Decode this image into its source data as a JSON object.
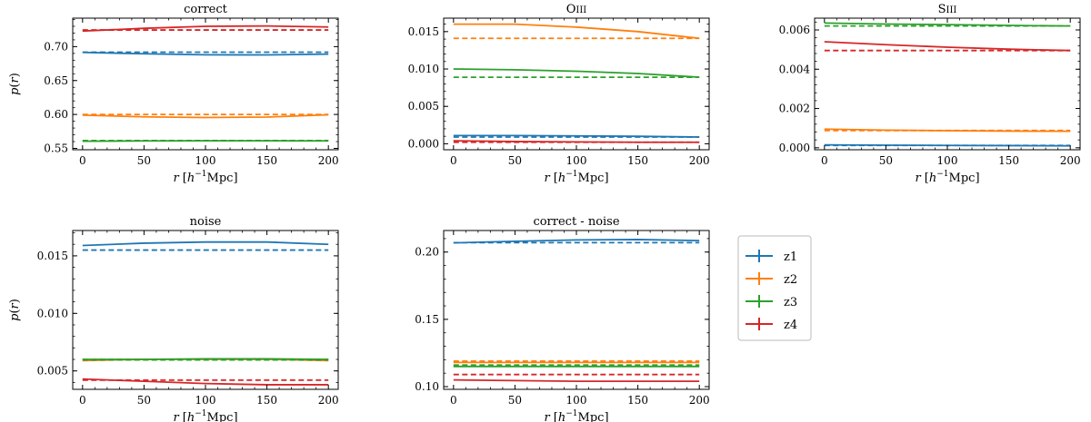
{
  "figure": {
    "colors": {
      "z1": "#1f77b4",
      "z2": "#ff7f0e",
      "z3": "#2ca02c",
      "z4": "#d62728"
    },
    "legend": {
      "placement": "right of lower panels",
      "entries": [
        "z1",
        "z2",
        "z3",
        "z4"
      ]
    }
  },
  "chart_data": [
    {
      "type": "line",
      "title": "correct",
      "xlabel": "r [h^-1 Mpc]",
      "ylabel": "p(r)",
      "xlim": [
        -8,
        208
      ],
      "ylim": [
        0.548,
        0.742
      ],
      "xticks": [
        0,
        50,
        100,
        150,
        200
      ],
      "yticks": [
        0.55,
        0.6,
        0.65,
        0.7
      ],
      "ytick_labels": [
        "0.55",
        "0.60",
        "0.65",
        "0.70"
      ],
      "series": [
        {
          "name": "z1",
          "solid": {
            "x": [
              0,
              50,
              100,
              150,
              200
            ],
            "y": [
              0.6915,
              0.6895,
              0.688,
              0.6878,
              0.689
            ]
          },
          "dashed": {
            "x": [
              0,
              200
            ],
            "y": [
              0.6918,
              0.6918
            ]
          }
        },
        {
          "name": "z2",
          "solid": {
            "x": [
              0,
              50,
              100,
              150,
              200
            ],
            "y": [
              0.599,
              0.5965,
              0.5955,
              0.5962,
              0.5995
            ]
          },
          "dashed": {
            "x": [
              0,
              200
            ],
            "y": [
              0.6,
              0.6
            ]
          }
        },
        {
          "name": "z3",
          "solid": {
            "x": [
              0,
              50,
              100,
              150,
              200
            ],
            "y": [
              0.5605,
              0.561,
              0.5612,
              0.5612,
              0.561
            ]
          },
          "dashed": {
            "x": [
              0,
              200
            ],
            "y": [
              0.5615,
              0.5615
            ]
          }
        },
        {
          "name": "z4",
          "solid": {
            "x": [
              0,
              50,
              100,
              150,
              200
            ],
            "y": [
              0.723,
              0.727,
              0.73,
              0.7305,
              0.729
            ]
          },
          "dashed": {
            "x": [
              0,
              200
            ],
            "y": [
              0.7245,
              0.7245
            ]
          }
        }
      ]
    },
    {
      "type": "line",
      "title": "OIII",
      "xlabel": "r [h^-1 Mpc]",
      "ylabel": "",
      "xlim": [
        -8,
        208
      ],
      "ylim": [
        -0.0008,
        0.0168
      ],
      "xticks": [
        0,
        50,
        100,
        150,
        200
      ],
      "yticks": [
        0.0,
        0.005,
        0.01,
        0.015
      ],
      "ytick_labels": [
        "0.000",
        "0.005",
        "0.010",
        "0.015"
      ],
      "series": [
        {
          "name": "z1",
          "solid": {
            "x": [
              0,
              50,
              100,
              150,
              200
            ],
            "y": [
              0.0011,
              0.0011,
              0.00105,
              0.001,
              0.0009
            ]
          },
          "dashed": {
            "x": [
              0,
              200
            ],
            "y": [
              0.0009,
              0.0009
            ]
          }
        },
        {
          "name": "z2",
          "solid": {
            "x": [
              0,
              50,
              100,
              150,
              200
            ],
            "y": [
              0.016,
              0.016,
              0.0156,
              0.015,
              0.0141
            ]
          },
          "dashed": {
            "x": [
              0,
              200
            ],
            "y": [
              0.0141,
              0.0141
            ]
          }
        },
        {
          "name": "z3",
          "solid": {
            "x": [
              0,
              50,
              100,
              150,
              200
            ],
            "y": [
              0.01,
              0.0099,
              0.0097,
              0.0094,
              0.0089
            ]
          },
          "dashed": {
            "x": [
              0,
              200
            ],
            "y": [
              0.0089,
              0.0089
            ]
          }
        },
        {
          "name": "z4",
          "solid": {
            "x": [
              0,
              50,
              100,
              150,
              200
            ],
            "y": [
              0.0004,
              0.0003,
              0.00025,
              0.0002,
              0.0002
            ]
          },
          "dashed": {
            "x": [
              0,
              200
            ],
            "y": [
              0.0002,
              0.0002
            ]
          }
        }
      ]
    },
    {
      "type": "line",
      "title": "SIII",
      "xlabel": "r [h^-1 Mpc]",
      "ylabel": "",
      "xlim": [
        -8,
        208
      ],
      "ylim": [
        -0.0001,
        0.0066
      ],
      "xticks": [
        0,
        50,
        100,
        150,
        200
      ],
      "yticks": [
        0.0,
        0.002,
        0.004,
        0.006
      ],
      "ytick_labels": [
        "0.000",
        "0.002",
        "0.004",
        "0.006"
      ],
      "series": [
        {
          "name": "z1",
          "solid": {
            "x": [
              0,
              50,
              100,
              150,
              200
            ],
            "y": [
              0.00015,
              0.00013,
              0.00012,
              0.00011,
              0.0001
            ]
          },
          "dashed": {
            "x": [
              0,
              200
            ],
            "y": [
              0.00012,
              0.00012
            ]
          }
        },
        {
          "name": "z2",
          "solid": {
            "x": [
              0,
              50,
              100,
              150,
              200
            ],
            "y": [
              0.00095,
              0.0009,
              0.00087,
              0.00085,
              0.00084
            ]
          },
          "dashed": {
            "x": [
              0,
              200
            ],
            "y": [
              0.00088,
              0.00088
            ]
          }
        },
        {
          "name": "z3",
          "solid": {
            "x": [
              0,
              50,
              100,
              150,
              200
            ],
            "y": [
              0.00635,
              0.0063,
              0.00627,
              0.00623,
              0.0062
            ]
          },
          "dashed": {
            "x": [
              0,
              200
            ],
            "y": [
              0.0062,
              0.0062
            ]
          }
        },
        {
          "name": "z4",
          "solid": {
            "x": [
              0,
              50,
              100,
              150,
              200
            ],
            "y": [
              0.0054,
              0.00525,
              0.00512,
              0.00502,
              0.00495
            ]
          },
          "dashed": {
            "x": [
              0,
              200
            ],
            "y": [
              0.00495,
              0.00495
            ]
          }
        }
      ]
    },
    {
      "type": "line",
      "title": "noise",
      "xlabel": "r [h^-1 Mpc]",
      "ylabel": "p(r)",
      "xlim": [
        -8,
        208
      ],
      "ylim": [
        0.0034,
        0.0172
      ],
      "xticks": [
        0,
        50,
        100,
        150,
        200
      ],
      "yticks": [
        0.005,
        0.01,
        0.015
      ],
      "ytick_labels": [
        "0.005",
        "0.010",
        "0.015"
      ],
      "series": [
        {
          "name": "z1",
          "solid": {
            "x": [
              0,
              50,
              100,
              150,
              200
            ],
            "y": [
              0.0159,
              0.0161,
              0.0162,
              0.0162,
              0.016
            ]
          },
          "dashed": {
            "x": [
              0,
              200
            ],
            "y": [
              0.0155,
              0.0155
            ]
          }
        },
        {
          "name": "z2",
          "solid": {
            "x": [
              0,
              50,
              100,
              150,
              200
            ],
            "y": [
              0.0059,
              0.006,
              0.006,
              0.006,
              0.0059
            ]
          },
          "dashed": {
            "x": [
              0,
              200
            ],
            "y": [
              0.006,
              0.006
            ]
          }
        },
        {
          "name": "z3",
          "solid": {
            "x": [
              0,
              50,
              100,
              150,
              200
            ],
            "y": [
              0.006,
              0.006,
              0.00605,
              0.00605,
              0.006
            ]
          },
          "dashed": {
            "x": [
              0,
              200
            ],
            "y": [
              0.00595,
              0.00595
            ]
          }
        },
        {
          "name": "z4",
          "solid": {
            "x": [
              0,
              50,
              100,
              150,
              200
            ],
            "y": [
              0.0043,
              0.0041,
              0.0039,
              0.0038,
              0.0038
            ]
          },
          "dashed": {
            "x": [
              0,
              200
            ],
            "y": [
              0.0042,
              0.0042
            ]
          }
        }
      ]
    },
    {
      "type": "line",
      "title": "correct - noise",
      "xlabel": "r [h^-1 Mpc]",
      "ylabel": "",
      "xlim": [
        -8,
        208
      ],
      "ylim": [
        0.098,
        0.216
      ],
      "xticks": [
        0,
        50,
        100,
        150,
        200
      ],
      "yticks": [
        0.1,
        0.15,
        0.2
      ],
      "ytick_labels": [
        "0.10",
        "0.15",
        "0.20"
      ],
      "series": [
        {
          "name": "z1",
          "solid": {
            "x": [
              0,
              50,
              100,
              150,
              200
            ],
            "y": [
              0.2068,
              0.208,
              0.209,
              0.2093,
              0.2085
            ]
          },
          "dashed": {
            "x": [
              0,
              200
            ],
            "y": [
              0.207,
              0.207
            ]
          }
        },
        {
          "name": "z2",
          "solid": {
            "x": [
              0,
              50,
              100,
              150,
              200
            ],
            "y": [
              0.118,
              0.118,
              0.118,
              0.118,
              0.118
            ]
          },
          "dashed": {
            "x": [
              0,
              200
            ],
            "y": [
              0.119,
              0.119
            ]
          }
        },
        {
          "name": "z3",
          "solid": {
            "x": [
              0,
              50,
              100,
              150,
              200
            ],
            "y": [
              0.115,
              0.115,
              0.115,
              0.115,
              0.115
            ]
          },
          "dashed": {
            "x": [
              0,
              200
            ],
            "y": [
              0.116,
              0.116
            ]
          }
        },
        {
          "name": "z4",
          "solid": {
            "x": [
              0,
              50,
              100,
              150,
              200
            ],
            "y": [
              0.105,
              0.1045,
              0.104,
              0.104,
              0.104
            ]
          },
          "dashed": {
            "x": [
              0,
              200
            ],
            "y": [
              0.109,
              0.109
            ]
          }
        }
      ]
    }
  ]
}
